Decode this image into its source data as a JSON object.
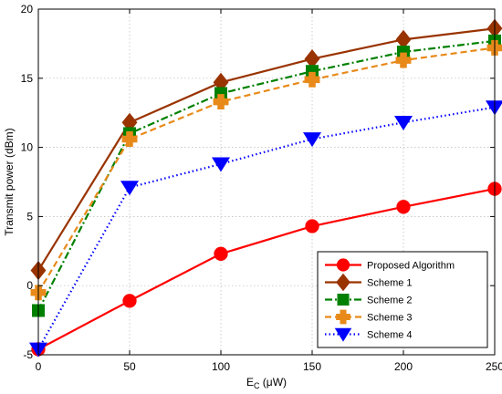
{
  "chart_data": {
    "type": "line",
    "title": "",
    "xlabel_main": "E",
    "xlabel_sub": "C",
    "xlabel_unit": " (μW)",
    "ylabel": "Transmit power (dBm)",
    "xlim": [
      0,
      250
    ],
    "ylim": [
      -5,
      20
    ],
    "grid": true,
    "legend_position": "bottom-right",
    "x": [
      0,
      50,
      100,
      150,
      200,
      250
    ],
    "xticks": [
      "0",
      "50",
      "100",
      "150",
      "200",
      "250"
    ],
    "yticks": [
      "-5",
      "0",
      "5",
      "10",
      "15",
      "20"
    ],
    "series": [
      {
        "name": "Proposed Algorithm",
        "color": "#ff0000",
        "marker": "circle",
        "style": "solid",
        "values": [
          -4.6,
          -1.1,
          2.3,
          4.3,
          5.7,
          7.0
        ]
      },
      {
        "name": "Scheme 1",
        "color": "#993300",
        "marker": "diamond",
        "style": "solid",
        "values": [
          1.1,
          11.8,
          14.7,
          16.4,
          17.8,
          18.6
        ]
      },
      {
        "name": "Scheme 2",
        "color": "#008000",
        "marker": "square",
        "style": "dashdot",
        "values": [
          -1.8,
          11.0,
          13.9,
          15.5,
          16.9,
          17.7
        ]
      },
      {
        "name": "Scheme 3",
        "color": "#e88a1a",
        "marker": "cross",
        "style": "dashed",
        "values": [
          -0.5,
          10.6,
          13.3,
          14.9,
          16.3,
          17.2
        ]
      },
      {
        "name": "Scheme 4",
        "color": "#0000ff",
        "marker": "triangle-down",
        "style": "dotted",
        "values": [
          -4.6,
          7.1,
          8.8,
          10.6,
          11.8,
          12.9
        ]
      }
    ]
  }
}
